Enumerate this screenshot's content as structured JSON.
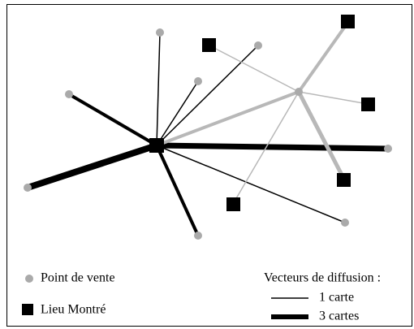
{
  "legend": {
    "point_de_vente": "Point de vente",
    "lieu_montre": "Lieu Montré",
    "vecteurs_title": "Vecteurs de diffusion :",
    "one": "1 carte",
    "three": "3 cartes"
  }
}
